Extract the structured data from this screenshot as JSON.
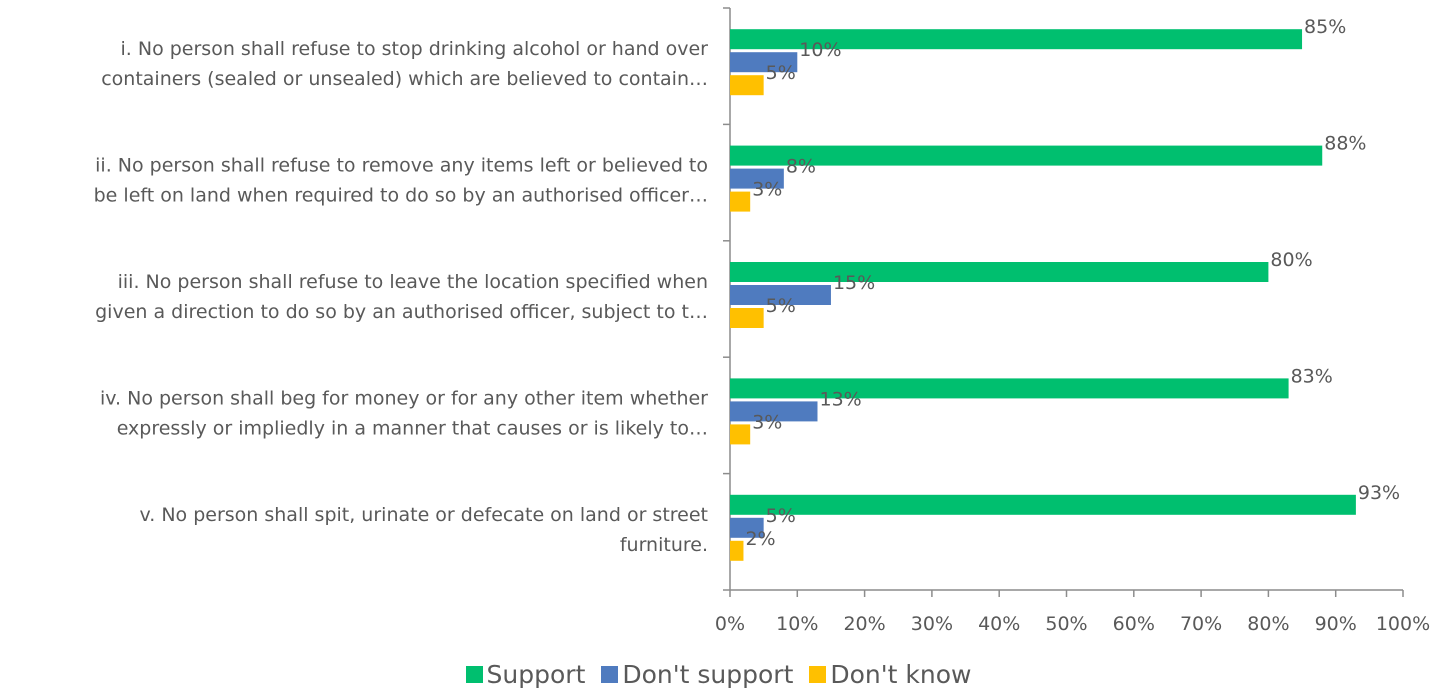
{
  "chart_data": {
    "type": "bar",
    "orientation": "horizontal",
    "categories": [
      [
        "i. No person shall refuse to stop drinking alcohol or hand over",
        "containers (sealed or unsealed) which are believed to contain…"
      ],
      [
        "ii. No person shall refuse to remove any items left or believed to",
        "be left on land when required to do so by an authorised officer…"
      ],
      [
        "iii. No person shall refuse to leave the location specified when",
        "given a direction to do so by an authorised officer, subject to t…"
      ],
      [
        "iv. No person shall beg for money or for any other item whether",
        "expressly or impliedly in a manner that causes or is likely to…"
      ],
      [
        "v. No person shall spit, urinate or defecate on land or street",
        "furniture."
      ]
    ],
    "series": [
      {
        "name": "Support",
        "color": "#00BF6F",
        "values": [
          85,
          88,
          80,
          83,
          93
        ],
        "labels": [
          "85%",
          "88%",
          "80%",
          "83%",
          "93%"
        ]
      },
      {
        "name": "Don't support",
        "color": "#4F7BBF",
        "values": [
          10,
          8,
          15,
          13,
          5
        ],
        "labels": [
          "10%",
          "8%",
          "15%",
          "13%",
          "5%"
        ]
      },
      {
        "name": "Don't know",
        "color": "#FFC000",
        "values": [
          5,
          3,
          5,
          3,
          2
        ],
        "labels": [
          "5%",
          "3%",
          "5%",
          "3%",
          "2%"
        ]
      }
    ],
    "xlim": [
      0,
      100
    ],
    "xticks": [
      "0%",
      "10%",
      "20%",
      "30%",
      "40%",
      "50%",
      "60%",
      "70%",
      "80%",
      "90%",
      "100%"
    ],
    "legend_position": "bottom",
    "grid": false
  }
}
